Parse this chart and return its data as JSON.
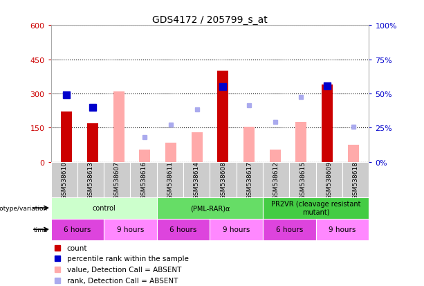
{
  "title": "GDS4172 / 205799_s_at",
  "samples": [
    "GSM538610",
    "GSM538613",
    "GSM538607",
    "GSM538616",
    "GSM538611",
    "GSM538614",
    "GSM538608",
    "GSM538617",
    "GSM538612",
    "GSM538615",
    "GSM538609",
    "GSM538618"
  ],
  "count_values": [
    220,
    170,
    null,
    null,
    null,
    null,
    400,
    null,
    null,
    null,
    340,
    null
  ],
  "percentile_rank_values": [
    295,
    240,
    null,
    null,
    null,
    null,
    330,
    null,
    null,
    null,
    335,
    null
  ],
  "absent_value_values": [
    null,
    null,
    310,
    55,
    85,
    130,
    null,
    155,
    55,
    175,
    null,
    75
  ],
  "absent_rank_values": [
    null,
    null,
    null,
    110,
    165,
    230,
    null,
    250,
    175,
    285,
    null,
    155
  ],
  "count_color": "#cc0000",
  "percentile_color": "#0000cc",
  "absent_value_color": "#ffaaaa",
  "absent_rank_color": "#aaaaee",
  "ylim_left": [
    0,
    600
  ],
  "ylim_right": [
    0,
    100
  ],
  "yticks_left": [
    0,
    150,
    300,
    450,
    600
  ],
  "yticks_right": [
    0,
    25,
    50,
    75,
    100
  ],
  "ytick_labels_left": [
    "0",
    "150",
    "300",
    "450",
    "600"
  ],
  "ytick_labels_right": [
    "0%",
    "25%",
    "50%",
    "75%",
    "100%"
  ],
  "genotype_groups": [
    {
      "label": "control",
      "start": 0,
      "end": 4,
      "color": "#ccffcc"
    },
    {
      "label": "(PML-RAR)α",
      "start": 4,
      "end": 8,
      "color": "#66dd66"
    },
    {
      "label": "PR2VR (cleavage resistant\nmutant)",
      "start": 8,
      "end": 12,
      "color": "#44cc44"
    }
  ],
  "time_groups": [
    {
      "label": "6 hours",
      "start": 0,
      "end": 2,
      "color": "#dd44dd"
    },
    {
      "label": "9 hours",
      "start": 2,
      "end": 4,
      "color": "#ff88ff"
    },
    {
      "label": "6 hours",
      "start": 4,
      "end": 6,
      "color": "#dd44dd"
    },
    {
      "label": "9 hours",
      "start": 6,
      "end": 8,
      "color": "#ff88ff"
    },
    {
      "label": "6 hours",
      "start": 8,
      "end": 10,
      "color": "#dd44dd"
    },
    {
      "label": "9 hours",
      "start": 10,
      "end": 12,
      "color": "#ff88ff"
    }
  ],
  "bar_width": 0.5,
  "background_color": "#ffffff",
  "grid_color": "#000000",
  "left_axis_color": "#cc0000",
  "right_axis_color": "#0000cc",
  "sample_box_color": "#cccccc",
  "chart_bg_color": "#ffffff"
}
